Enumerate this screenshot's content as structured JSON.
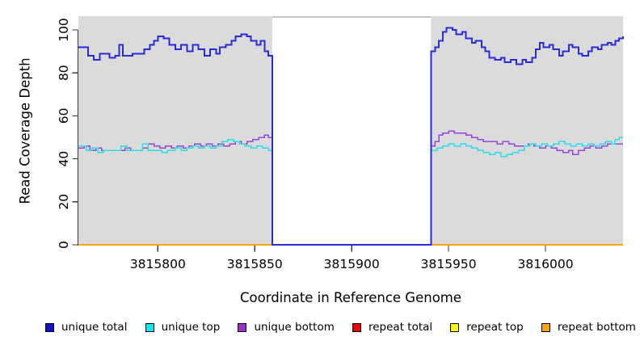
{
  "figure": {
    "panel_color": "#DBDBDB",
    "gap_border_color": "#8C8C8C",
    "axis_color": "#3A3A3A",
    "tick_label_color": "#000000"
  },
  "chart_data": {
    "type": "line",
    "subtype": "step",
    "title": "",
    "xlabel": "Coordinate in Reference Genome",
    "ylabel": "Read Coverage Depth",
    "xlim": [
      3815759,
      3816040
    ],
    "ylim": [
      0,
      106
    ],
    "xticks": [
      3815800,
      3815850,
      3815900,
      3815950,
      3816000
    ],
    "yticks": [
      0,
      20,
      40,
      60,
      80,
      100
    ],
    "grid": false,
    "legend_position": "bottom",
    "shaded_regions": [
      [
        3815759,
        3815859
      ],
      [
        3815941,
        3816040
      ]
    ],
    "gap_region": [
      3815859,
      3815941
    ],
    "series": [
      {
        "name": "repeat total",
        "color": "#DD0000",
        "width": 2,
        "segments": [
          [
            [
              3815759,
              0
            ],
            [
              3815859,
              0
            ]
          ],
          [
            [
              3815941,
              0
            ],
            [
              3816040,
              0
            ]
          ]
        ]
      },
      {
        "name": "repeat top",
        "color": "#FFFF00",
        "width": 2,
        "segments": [
          [
            [
              3815759,
              0
            ],
            [
              3815859,
              0
            ]
          ],
          [
            [
              3815941,
              0
            ],
            [
              3816040,
              0
            ]
          ]
        ]
      },
      {
        "name": "repeat bottom",
        "color": "#FFA500",
        "width": 2,
        "segments": [
          [
            [
              3815759,
              0
            ],
            [
              3815859,
              0
            ]
          ],
          [
            [
              3815941,
              0
            ],
            [
              3816040,
              0
            ]
          ]
        ]
      },
      {
        "name": "unique bottom",
        "color": "#9945D8",
        "width": 1.5,
        "segments": [
          [
            [
              3815759,
              45
            ],
            [
              3815762,
              46
            ],
            [
              3815765,
              44
            ],
            [
              3815768,
              45
            ],
            [
              3815771,
              44
            ],
            [
              3815777,
              44
            ],
            [
              3815783,
              45
            ],
            [
              3815786,
              44
            ],
            [
              3815792,
              45
            ],
            [
              3815795,
              47
            ],
            [
              3815798,
              46
            ],
            [
              3815801,
              45
            ],
            [
              3815804,
              46
            ],
            [
              3815807,
              45
            ],
            [
              3815810,
              46
            ],
            [
              3815813,
              45
            ],
            [
              3815816,
              46
            ],
            [
              3815819,
              47
            ],
            [
              3815822,
              46
            ],
            [
              3815825,
              47
            ],
            [
              3815828,
              46
            ],
            [
              3815831,
              47
            ],
            [
              3815834,
              46
            ],
            [
              3815837,
              47
            ],
            [
              3815840,
              48
            ],
            [
              3815843,
              47
            ],
            [
              3815846,
              48
            ],
            [
              3815849,
              49
            ],
            [
              3815852,
              50
            ],
            [
              3815855,
              51
            ],
            [
              3815857,
              50
            ],
            [
              3815859,
              0
            ],
            [
              3815941,
              46
            ],
            [
              3815943,
              48
            ],
            [
              3815945,
              51
            ],
            [
              3815947,
              52
            ],
            [
              3815950,
              53
            ],
            [
              3815953,
              52
            ],
            [
              3815956,
              52
            ],
            [
              3815959,
              51
            ],
            [
              3815962,
              50
            ],
            [
              3815965,
              49
            ],
            [
              3815968,
              48
            ],
            [
              3815972,
              48
            ],
            [
              3815975,
              47
            ],
            [
              3815978,
              48
            ],
            [
              3815981,
              47
            ],
            [
              3815984,
              46
            ],
            [
              3815988,
              46
            ],
            [
              3815991,
              47
            ],
            [
              3815994,
              46
            ],
            [
              3815997,
              45
            ],
            [
              3816000,
              46
            ],
            [
              3816003,
              45
            ],
            [
              3816006,
              44
            ],
            [
              3816009,
              43
            ],
            [
              3816012,
              44
            ],
            [
              3816014,
              42
            ],
            [
              3816017,
              44
            ],
            [
              3816020,
              45
            ],
            [
              3816023,
              46
            ],
            [
              3816026,
              45
            ],
            [
              3816029,
              46
            ],
            [
              3816032,
              47
            ],
            [
              3816035,
              47
            ],
            [
              3816040,
              47
            ]
          ]
        ]
      },
      {
        "name": "unique top",
        "color": "#2BDDE4",
        "width": 1.5,
        "segments": [
          [
            [
              3815759,
              46
            ],
            [
              3815763,
              44
            ],
            [
              3815766,
              45
            ],
            [
              3815769,
              43
            ],
            [
              3815772,
              44
            ],
            [
              3815781,
              46
            ],
            [
              3815784,
              44
            ],
            [
              3815790,
              44
            ],
            [
              3815792,
              47
            ],
            [
              3815795,
              44
            ],
            [
              3815802,
              43
            ],
            [
              3815805,
              44
            ],
            [
              3815809,
              45
            ],
            [
              3815812,
              44
            ],
            [
              3815815,
              45
            ],
            [
              3815818,
              46
            ],
            [
              3815821,
              45
            ],
            [
              3815824,
              46
            ],
            [
              3815827,
              45
            ],
            [
              3815830,
              46
            ],
            [
              3815833,
              48
            ],
            [
              3815836,
              49
            ],
            [
              3815839,
              48
            ],
            [
              3815842,
              47
            ],
            [
              3815845,
              46
            ],
            [
              3815848,
              45
            ],
            [
              3815851,
              46
            ],
            [
              3815854,
              45
            ],
            [
              3815857,
              44
            ],
            [
              3815859,
              0
            ],
            [
              3815941,
              44
            ],
            [
              3815944,
              45
            ],
            [
              3815947,
              46
            ],
            [
              3815950,
              47
            ],
            [
              3815953,
              46
            ],
            [
              3815956,
              47
            ],
            [
              3815959,
              46
            ],
            [
              3815962,
              45
            ],
            [
              3815965,
              44
            ],
            [
              3815968,
              43
            ],
            [
              3815971,
              42
            ],
            [
              3815974,
              43
            ],
            [
              3815977,
              41
            ],
            [
              3815980,
              42
            ],
            [
              3815983,
              43
            ],
            [
              3815986,
              44
            ],
            [
              3815989,
              46
            ],
            [
              3815992,
              47
            ],
            [
              3815995,
              46
            ],
            [
              3815998,
              47
            ],
            [
              3816001,
              46
            ],
            [
              3816004,
              47
            ],
            [
              3816007,
              48
            ],
            [
              3816010,
              47
            ],
            [
              3816013,
              46
            ],
            [
              3816016,
              47
            ],
            [
              3816019,
              46
            ],
            [
              3816022,
              47
            ],
            [
              3816025,
              46
            ],
            [
              3816028,
              47
            ],
            [
              3816031,
              48
            ],
            [
              3816034,
              47
            ],
            [
              3816036,
              49
            ],
            [
              3816038,
              50
            ],
            [
              3816040,
              50
            ]
          ]
        ]
      },
      {
        "name": "unique total",
        "color": "#2A2AD8",
        "width": 2,
        "segments": [
          [
            [
              3815759,
              92
            ],
            [
              3815764,
              88
            ],
            [
              3815767,
              86
            ],
            [
              3815770,
              89
            ],
            [
              3815775,
              87
            ],
            [
              3815778,
              88
            ],
            [
              3815780,
              93
            ],
            [
              3815782,
              88
            ],
            [
              3815787,
              89
            ],
            [
              3815793,
              91
            ],
            [
              3815796,
              93
            ],
            [
              3815798,
              95
            ],
            [
              3815800,
              97
            ],
            [
              3815803,
              96
            ],
            [
              3815806,
              93
            ],
            [
              3815809,
              91
            ],
            [
              3815812,
              93
            ],
            [
              3815815,
              90
            ],
            [
              3815818,
              93
            ],
            [
              3815821,
              91
            ],
            [
              3815824,
              88
            ],
            [
              3815827,
              91
            ],
            [
              3815830,
              89
            ],
            [
              3815832,
              92
            ],
            [
              3815835,
              93
            ],
            [
              3815838,
              95
            ],
            [
              3815840,
              97
            ],
            [
              3815843,
              98
            ],
            [
              3815846,
              97
            ],
            [
              3815848,
              95
            ],
            [
              3815851,
              93
            ],
            [
              3815853,
              95
            ],
            [
              3815855,
              90
            ],
            [
              3815857,
              88
            ],
            [
              3815859,
              0
            ],
            [
              3815941,
              90
            ],
            [
              3815943,
              92
            ],
            [
              3815945,
              95
            ],
            [
              3815947,
              99
            ],
            [
              3815949,
              101
            ],
            [
              3815952,
              100
            ],
            [
              3815954,
              98
            ],
            [
              3815957,
              99
            ],
            [
              3815959,
              96
            ],
            [
              3815962,
              94
            ],
            [
              3815964,
              95
            ],
            [
              3815967,
              92
            ],
            [
              3815969,
              90
            ],
            [
              3815971,
              87
            ],
            [
              3815974,
              86
            ],
            [
              3815977,
              87
            ],
            [
              3815979,
              85
            ],
            [
              3815982,
              86
            ],
            [
              3815985,
              84
            ],
            [
              3815988,
              86
            ],
            [
              3815990,
              85
            ],
            [
              3815993,
              87
            ],
            [
              3815995,
              91
            ],
            [
              3815997,
              94
            ],
            [
              3815999,
              92
            ],
            [
              3816002,
              93
            ],
            [
              3816004,
              91
            ],
            [
              3816007,
              88
            ],
            [
              3816009,
              90
            ],
            [
              3816012,
              93
            ],
            [
              3816014,
              92
            ],
            [
              3816017,
              89
            ],
            [
              3816019,
              88
            ],
            [
              3816022,
              90
            ],
            [
              3816024,
              92
            ],
            [
              3816027,
              91
            ],
            [
              3816029,
              93
            ],
            [
              3816032,
              94
            ],
            [
              3816034,
              93
            ],
            [
              3816036,
              95
            ],
            [
              3816038,
              96
            ],
            [
              3816040,
              97
            ]
          ]
        ]
      }
    ]
  },
  "legend": {
    "items": [
      {
        "label": "unique total",
        "color": "#1111CC"
      },
      {
        "label": "unique top",
        "color": "#00EEEE"
      },
      {
        "label": "unique bottom",
        "color": "#9932CC"
      },
      {
        "label": "repeat total",
        "color": "#EE0000"
      },
      {
        "label": "repeat top",
        "color": "#FFFF00"
      },
      {
        "label": "repeat bottom",
        "color": "#FFA500"
      }
    ]
  }
}
